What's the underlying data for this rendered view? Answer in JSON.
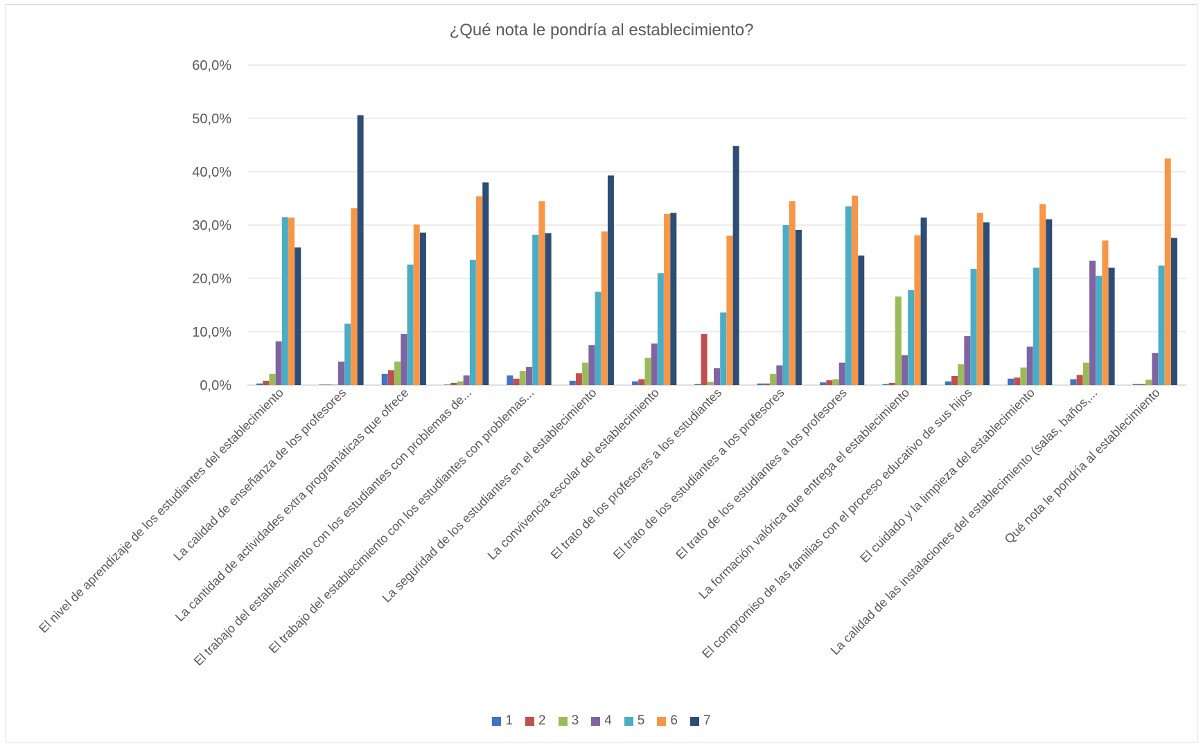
{
  "chart_data": {
    "type": "bar",
    "title": "¿Qué nota le pondría al establecimiento?",
    "xlabel": "",
    "ylabel": "",
    "ylim": [
      0,
      60
    ],
    "ytick_labels": [
      "0,0%",
      "10,0%",
      "20,0%",
      "30,0%",
      "40,0%",
      "50,0%",
      "60,0%"
    ],
    "grid": true,
    "legend_position": "bottom",
    "categories": [
      "El nivel de aprendizaje de los estudiantes del establecimiento",
      "La calidad de enseñanza de los profesores",
      "La cantidad de actividades extra programáticas que ofrece",
      "El trabajo del establecimiento con los estudiantes con problemas de...",
      "El trabajo del establecimiento con los estudiantes con problemas...",
      "La seguridad de los estudiantes en el establecimiento",
      "La convivencia escolar del establecimiento",
      "El trato de los profesores a los estudiantes",
      "El trato de los estudiantes a los profesores",
      "El trato de los estudiantes a los profesores",
      "La formación valórica que entrega el establecimiento",
      "El compromiso de las familias con el proceso educativo de sus hijos",
      "El cuidado y la limpieza del establecimiento",
      "La calidad de las instalaciones del establecimiento (salas, baños,...",
      "Qué nota le pondría al establecimiento"
    ],
    "series": [
      {
        "name": "1",
        "color": "#4472c4",
        "values": [
          0.3,
          0.1,
          2.1,
          0.1,
          1.8,
          0.8,
          0.7,
          0.2,
          0.3,
          0.5,
          0.2,
          0.7,
          1.2,
          1.1,
          0.2
        ]
      },
      {
        "name": "2",
        "color": "#c0504d",
        "values": [
          0.8,
          0.1,
          2.8,
          0.4,
          1.2,
          2.2,
          1.1,
          9.6,
          0.3,
          0.9,
          0.4,
          1.7,
          1.4,
          1.9,
          0.2
        ]
      },
      {
        "name": "3",
        "color": "#9bbb59",
        "values": [
          2.1,
          0.1,
          4.4,
          0.7,
          2.6,
          4.2,
          5.1,
          0.6,
          2.1,
          1.1,
          16.6,
          3.9,
          3.3,
          4.2,
          1.0
        ]
      },
      {
        "name": "4",
        "color": "#8064a2",
        "values": [
          8.2,
          4.4,
          9.6,
          1.8,
          3.4,
          7.5,
          7.8,
          3.2,
          3.7,
          4.2,
          5.6,
          9.2,
          7.2,
          23.3,
          6.0
        ]
      },
      {
        "name": "5",
        "color": "#4bacc6",
        "values": [
          31.5,
          11.5,
          22.6,
          23.5,
          28.2,
          17.5,
          21.0,
          13.6,
          30.0,
          33.5,
          17.8,
          21.8,
          22.0,
          20.5,
          22.4
        ]
      },
      {
        "name": "6",
        "color": "#f79646",
        "values": [
          31.4,
          33.2,
          30.1,
          35.4,
          34.5,
          28.8,
          32.1,
          28.0,
          34.5,
          35.5,
          28.1,
          32.3,
          33.9,
          27.1,
          42.5
        ]
      },
      {
        "name": "7",
        "color": "#2c4d75",
        "values": [
          25.8,
          50.6,
          28.6,
          38.0,
          28.5,
          39.3,
          32.3,
          44.8,
          29.1,
          24.3,
          31.4,
          30.5,
          31.1,
          22.0,
          27.6
        ]
      }
    ]
  }
}
